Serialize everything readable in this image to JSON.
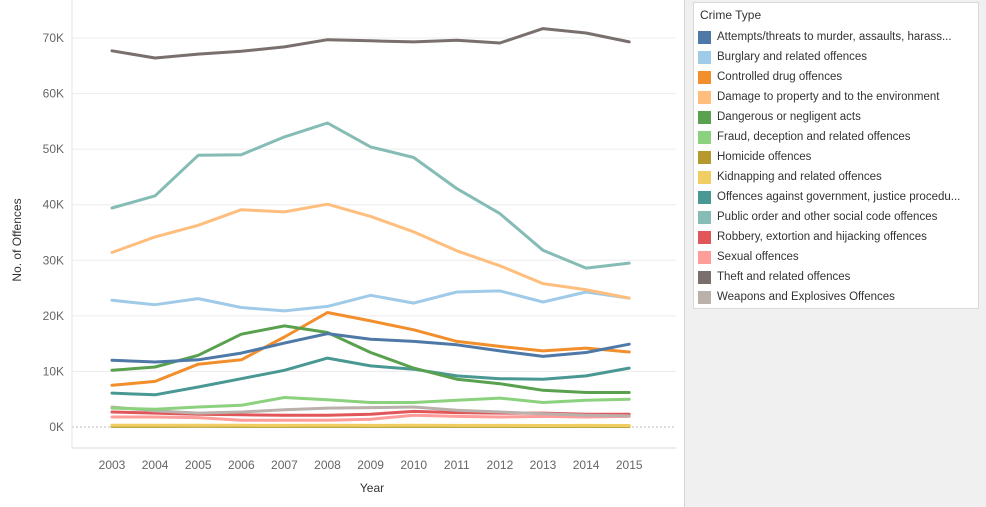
{
  "legend": {
    "title": "Crime Type"
  },
  "chart_data": {
    "type": "line",
    "title": "",
    "xlabel": "Year",
    "ylabel": "No. of Offences",
    "x": [
      "2003",
      "2004",
      "2005",
      "2006",
      "2007",
      "2008",
      "2009",
      "2010",
      "2011",
      "2012",
      "2013",
      "2014",
      "2015"
    ],
    "ylim": [
      0,
      75000
    ],
    "yticks": [
      0,
      10000,
      20000,
      30000,
      40000,
      50000,
      60000,
      70000
    ],
    "ytick_labels": [
      "0K",
      "10K",
      "20K",
      "30K",
      "40K",
      "50K",
      "60K",
      "70K"
    ],
    "grid": "horizontal",
    "legend_position": "right",
    "series": [
      {
        "name": "Attempts/threats to murder, assaults, harass...",
        "color": "#4e79a7",
        "values": [
          12000,
          11700,
          12100,
          13300,
          15100,
          16800,
          15800,
          15400,
          14800,
          13700,
          12700,
          13400,
          14900
        ]
      },
      {
        "name": "Burglary and related offences",
        "color": "#a0cbe8",
        "values": [
          22800,
          22000,
          23100,
          21500,
          20900,
          21700,
          23700,
          22300,
          24300,
          24500,
          22500,
          24300,
          23200
        ]
      },
      {
        "name": "Controlled drug offences",
        "color": "#f28e2b",
        "values": [
          7500,
          8200,
          11300,
          12100,
          16200,
          20600,
          19100,
          17500,
          15400,
          14500,
          13700,
          14200,
          13500
        ]
      },
      {
        "name": "Damage to property and to the environment",
        "color": "#ffbe7d",
        "values": [
          31400,
          34200,
          36300,
          39100,
          38700,
          40100,
          37900,
          35100,
          31700,
          29000,
          25800,
          24700,
          23200
        ]
      },
      {
        "name": "Dangerous or negligent acts",
        "color": "#59a14f",
        "values": [
          10200,
          10800,
          12900,
          16700,
          18200,
          17000,
          13400,
          10600,
          8600,
          7800,
          6600,
          6200,
          6200
        ]
      },
      {
        "name": "Fraud, deception and related offences",
        "color": "#8cd17d",
        "values": [
          3400,
          3200,
          3600,
          3900,
          5300,
          4900,
          4400,
          4400,
          4800,
          5200,
          4400,
          4800,
          5000
        ]
      },
      {
        "name": "Homicide offences",
        "color": "#b6992d",
        "values": [
          100,
          100,
          120,
          110,
          100,
          110,
          100,
          100,
          110,
          100,
          100,
          110,
          100
        ]
      },
      {
        "name": "Kidnapping and related offences",
        "color": "#f1ce63",
        "values": [
          300,
          320,
          310,
          300,
          290,
          300,
          280,
          300,
          290,
          280,
          270,
          280,
          270
        ]
      },
      {
        "name": "Offences against government, justice procedu...",
        "color": "#499894",
        "values": [
          6100,
          5800,
          7200,
          8700,
          10200,
          12400,
          11000,
          10400,
          9200,
          8700,
          8600,
          9200,
          10600
        ]
      },
      {
        "name": "Public order and other social code offences",
        "color": "#86bcb6",
        "values": [
          39400,
          41600,
          48900,
          49000,
          52200,
          54700,
          50400,
          48500,
          42900,
          38400,
          31800,
          28600,
          29500
        ]
      },
      {
        "name": "Robbery, extortion and hijacking offences",
        "color": "#e15759",
        "values": [
          2700,
          2500,
          2300,
          2200,
          2100,
          2100,
          2300,
          2800,
          2600,
          2500,
          2500,
          2300,
          2300
        ]
      },
      {
        "name": "Sexual offences",
        "color": "#ff9d9a",
        "values": [
          1800,
          1800,
          1700,
          1200,
          1200,
          1200,
          1400,
          2100,
          1900,
          1800,
          1900,
          1800,
          1900
        ]
      },
      {
        "name": "Theft and related offences",
        "color": "#79706e",
        "values": [
          67700,
          66400,
          67100,
          67600,
          68400,
          69700,
          69500,
          69300,
          69600,
          69100,
          71700,
          70900,
          69300
        ]
      },
      {
        "name": "Weapons and Explosives Offences",
        "color": "#bab0ac",
        "values": [
          3600,
          2900,
          2500,
          2700,
          3100,
          3400,
          3500,
          3600,
          3000,
          2700,
          2400,
          2100,
          2000
        ]
      }
    ]
  }
}
